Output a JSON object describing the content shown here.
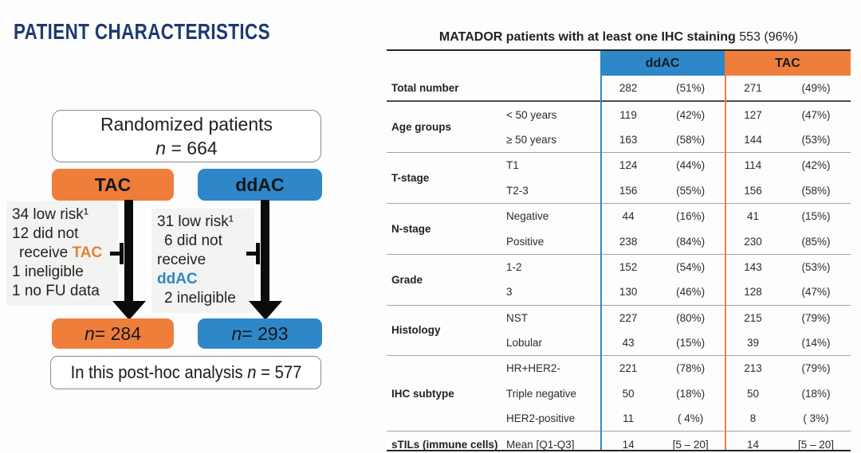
{
  "slide_title": "PATIENT CHARACTERISTICS",
  "colors": {
    "orange": "#ee7e3a",
    "blue": "#2e87c8",
    "navy": "#1e3a6e"
  },
  "flowchart": {
    "randomized": {
      "line1": "Randomized patients",
      "n_italic": "n",
      "n_rest": " = 664"
    },
    "arm_left_label": "TAC",
    "arm_right_label": "ddAC",
    "note_left": {
      "line1": "34 low risk¹",
      "line2": "12 did not",
      "line3_prefix": "receive ",
      "line3_highlight": "TAC",
      "line4": "1 ineligible",
      "line5": "1 no FU data"
    },
    "note_right": {
      "line1": "31 low risk¹",
      "line2": "6 did not",
      "line3_prefix": "receive ",
      "line3_highlight": "ddAC",
      "line4": "2 ineligible"
    },
    "result_left": {
      "n_italic": "n",
      "n_rest": " = 284"
    },
    "result_right": {
      "n_italic": "n",
      "n_rest": " = 293"
    },
    "summary": {
      "prefix": "In this post-hoc analysis ",
      "n_italic": "n",
      "n_rest": " = 577"
    }
  },
  "table": {
    "title_bold": "MATADOR patients with at least one IHC staining",
    "title_rest": " 553 (96%)",
    "columns": [
      {
        "label": "ddAC",
        "color": "#2e87c8"
      },
      {
        "label": "TAC",
        "color": "#ee7e3a"
      }
    ],
    "rows": [
      {
        "label": "Total number",
        "subs": [
          {
            "label": "",
            "ddac": [
              "282",
              "(51%)"
            ],
            "tac": [
              "271",
              "(49%)"
            ]
          }
        ]
      },
      {
        "label": "Age groups",
        "subs": [
          {
            "label": "< 50 years",
            "ddac": [
              "119",
              "(42%)"
            ],
            "tac": [
              "127",
              "(47%)"
            ]
          },
          {
            "label": "≥ 50 years",
            "ddac": [
              "163",
              "(58%)"
            ],
            "tac": [
              "144",
              "(53%)"
            ]
          }
        ]
      },
      {
        "label": "T-stage",
        "subs": [
          {
            "label": "T1",
            "ddac": [
              "124",
              "(44%)"
            ],
            "tac": [
              "114",
              "(42%)"
            ]
          },
          {
            "label": "T2-3",
            "ddac": [
              "156",
              "(55%)"
            ],
            "tac": [
              "156",
              "(58%)"
            ]
          }
        ]
      },
      {
        "label": "N-stage",
        "subs": [
          {
            "label": "Negative",
            "ddac": [
              "44",
              "(16%)"
            ],
            "tac": [
              "41",
              "(15%)"
            ]
          },
          {
            "label": "Positive",
            "ddac": [
              "238",
              "(84%)"
            ],
            "tac": [
              "230",
              "(85%)"
            ]
          }
        ]
      },
      {
        "label": "Grade",
        "subs": [
          {
            "label": "1-2",
            "ddac": [
              "152",
              "(54%)"
            ],
            "tac": [
              "143",
              "(53%)"
            ]
          },
          {
            "label": "3",
            "ddac": [
              "130",
              "(46%)"
            ],
            "tac": [
              "128",
              "(47%)"
            ]
          }
        ]
      },
      {
        "label": "Histology",
        "subs": [
          {
            "label": "NST",
            "ddac": [
              "227",
              "(80%)"
            ],
            "tac": [
              "215",
              "(79%)"
            ]
          },
          {
            "label": "Lobular",
            "ddac": [
              "43",
              "(15%)"
            ],
            "tac": [
              "39",
              "(14%)"
            ]
          }
        ]
      },
      {
        "label": "IHC subtype",
        "subs": [
          {
            "label": "HR+HER2-",
            "ddac": [
              "221",
              "(78%)"
            ],
            "tac": [
              "213",
              "(79%)"
            ]
          },
          {
            "label": "Triple negative",
            "ddac": [
              "50",
              "(18%)"
            ],
            "tac": [
              "50",
              "(18%)"
            ]
          },
          {
            "label": "HER2-positive",
            "ddac": [
              "11",
              "( 4%)"
            ],
            "tac": [
              "8",
              "( 3%)"
            ]
          }
        ]
      },
      {
        "label": "sTILs (immune cells)",
        "subs": [
          {
            "label": "Mean [Q1-Q3]",
            "ddac": [
              "14",
              "[5 – 20]"
            ],
            "tac": [
              "14",
              "[5 – 20]"
            ]
          }
        ]
      }
    ]
  }
}
